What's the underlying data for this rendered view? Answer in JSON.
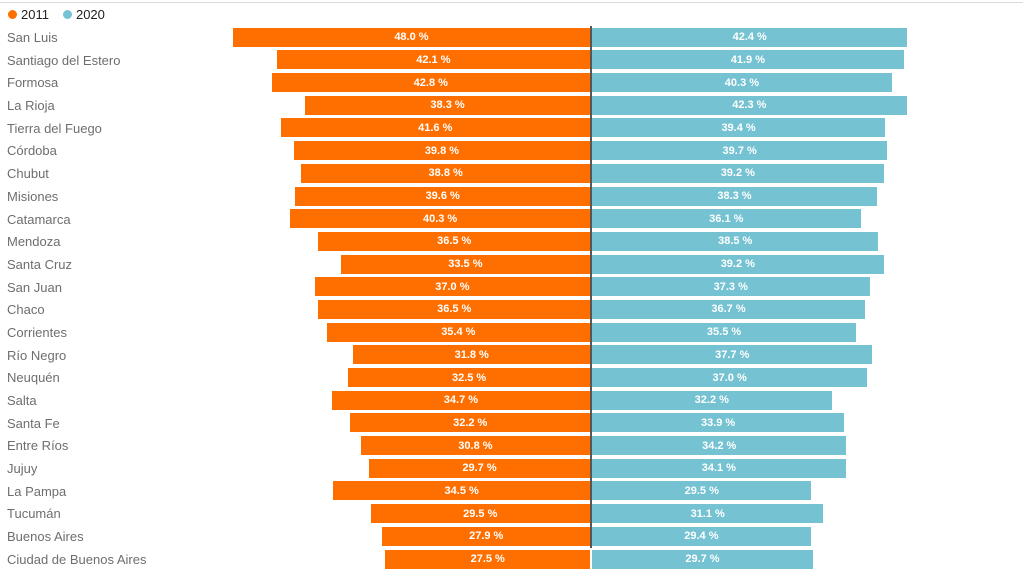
{
  "legend": {
    "items": [
      {
        "label": "2011",
        "color": "#ff6f00"
      },
      {
        "label": "2020",
        "color": "#74c2d2"
      }
    ]
  },
  "chart_data": {
    "type": "bar",
    "variant": "butterfly-tornado",
    "orientation": "horizontal",
    "grid": false,
    "legend_position": "top-left",
    "value_suffix": " %",
    "axis_range_each_side": [
      0,
      48.4
    ],
    "categories": [
      "San Luis",
      "Santiago del Estero",
      "Formosa",
      "La Rioja",
      "Tierra del Fuego",
      "Córdoba",
      "Chubut",
      "Misiones",
      "Catamarca",
      "Mendoza",
      "Santa Cruz",
      "San Juan",
      "Chaco",
      "Corrientes",
      "Río Negro",
      "Neuquén",
      "Salta",
      "Santa Fe",
      "Entre Ríos",
      "Jujuy",
      "La Pampa",
      "Tucumán",
      "Buenos Aires",
      "Ciudad de Buenos Aires"
    ],
    "series": [
      {
        "name": "2011",
        "color": "#ff6f00",
        "side": "left",
        "values": [
          48.0,
          42.1,
          42.8,
          38.3,
          41.6,
          39.8,
          38.8,
          39.6,
          40.3,
          36.5,
          33.5,
          37.0,
          36.5,
          35.4,
          31.8,
          32.5,
          34.7,
          32.2,
          30.8,
          29.7,
          34.5,
          29.5,
          27.9,
          27.5
        ]
      },
      {
        "name": "2020",
        "color": "#74c2d2",
        "side": "right",
        "values": [
          42.4,
          41.9,
          40.3,
          42.3,
          39.4,
          39.7,
          39.2,
          38.3,
          36.1,
          38.5,
          39.2,
          37.3,
          36.7,
          35.5,
          37.7,
          37.0,
          32.2,
          33.9,
          34.2,
          34.1,
          29.5,
          31.1,
          29.4,
          29.7
        ]
      }
    ]
  }
}
